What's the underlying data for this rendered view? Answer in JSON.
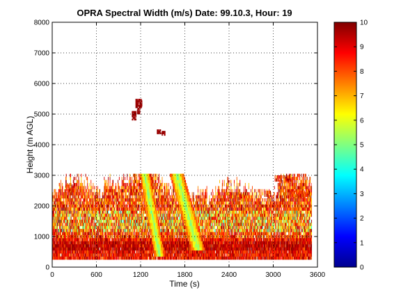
{
  "chart_data": {
    "type": "heatmap",
    "title": "OPRA Spectral Width (m/s)  Date: 99.10.3, Hour: 19",
    "xlabel": "Time (s)",
    "ylabel": "Height (m AGL)",
    "xlim": [
      0,
      3600
    ],
    "ylim": [
      0,
      8000
    ],
    "xticks": [
      "0",
      "600",
      "1200",
      "1800",
      "2400",
      "3000",
      "3600"
    ],
    "yticks": [
      "0",
      "1000",
      "2000",
      "3000",
      "4000",
      "5000",
      "6000",
      "7000",
      "8000"
    ],
    "grid": true,
    "colormap": "jet",
    "colorbar": {
      "range": [
        0,
        10
      ],
      "ticks": [
        "0",
        "1",
        "2",
        "3",
        "4",
        "5",
        "6",
        "7",
        "8",
        "9",
        "10"
      ],
      "colors": [
        "#00008f",
        "#0000ff",
        "#0080ff",
        "#00ffff",
        "#80ff80",
        "#ffff00",
        "#ff8000",
        "#ff0000",
        "#800000"
      ]
    },
    "regions": [
      {
        "name": "dense layer",
        "x": [
          0,
          3520
        ],
        "y": [
          250,
          900
        ],
        "value_range": [
          7,
          10
        ]
      },
      {
        "name": "broken layer",
        "x": [
          0,
          3520
        ],
        "y": [
          900,
          3000
        ],
        "value_range": [
          3,
          10
        ]
      },
      {
        "name": "plume 1",
        "x": [
          1190,
          1480
        ],
        "y": [
          300,
          3300
        ],
        "value_range": [
          4,
          8
        ]
      },
      {
        "name": "plume 2",
        "x": [
          1480,
          2000
        ],
        "y": [
          500,
          3700
        ],
        "value_range": [
          4,
          8
        ]
      },
      {
        "name": "isolated echo 1",
        "x": [
          1080,
          1140
        ],
        "y": [
          4800,
          5100
        ],
        "value_range": [
          9,
          10
        ]
      },
      {
        "name": "isolated echo 2",
        "x": [
          1140,
          1220
        ],
        "y": [
          5200,
          5500
        ],
        "value_range": [
          9,
          10
        ]
      },
      {
        "name": "isolated echo 3",
        "x": [
          1420,
          1530
        ],
        "y": [
          4300,
          4500
        ],
        "value_range": [
          9,
          10
        ]
      }
    ]
  }
}
